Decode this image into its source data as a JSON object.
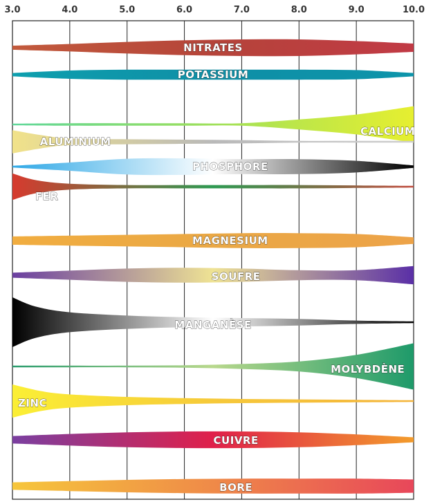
{
  "chart_data": {
    "type": "area",
    "title": "",
    "xlabel": "",
    "ylabel": "",
    "xlim": [
      3.0,
      10.0
    ],
    "x_ticks": [
      "3.0",
      "4.0",
      "5.0",
      "6.0",
      "7.0",
      "8.0",
      "9.0",
      "10.0"
    ],
    "grid": true,
    "series": [
      {
        "name": "NITRATES",
        "x": [
          3.0,
          4.0,
          5.0,
          6.0,
          7.0,
          8.0,
          9.0,
          10.0
        ],
        "values": [
          0.25,
          0.45,
          0.7,
          0.9,
          1.0,
          1.0,
          0.8,
          0.5
        ],
        "colors": [
          "#c25a3c",
          "#b5443a",
          "#c13a45"
        ]
      },
      {
        "name": "POTASSIUM",
        "x": [
          3.0,
          4.0,
          5.0,
          6.0,
          7.0,
          8.0,
          9.0,
          10.0
        ],
        "values": [
          0.2,
          0.5,
          0.6,
          0.6,
          0.6,
          0.6,
          0.55,
          0.2
        ],
        "colors": [
          "#0e9fae",
          "#0f8fa6",
          "#0d94aa"
        ]
      },
      {
        "name": "CALCIUM",
        "x": [
          3.0,
          4.0,
          5.0,
          6.0,
          7.0,
          8.0,
          9.0,
          10.0
        ],
        "values": [
          0.05,
          0.15,
          0.15,
          0.15,
          0.15,
          0.6,
          1.2,
          2.2
        ],
        "colors": [
          "#5fd79a",
          "#9fe05a",
          "#e6ef30"
        ]
      },
      {
        "name": "ALUMINIUM",
        "x": [
          3.0,
          3.5,
          4.0,
          5.0,
          6.0,
          7.0,
          8.0,
          9.0,
          10.0
        ],
        "values": [
          1.4,
          0.8,
          0.4,
          0.3,
          0.25,
          0.2,
          0.1,
          0.04,
          0.0
        ],
        "colors": [
          "#f1e28a",
          "#b9b9b9",
          "#cfcfcf"
        ]
      },
      {
        "name": "PHOSPHORE",
        "x": [
          3.0,
          4.0,
          5.0,
          6.0,
          7.0,
          8.0,
          9.0,
          10.0
        ],
        "values": [
          0.0,
          0.5,
          0.95,
          1.0,
          0.9,
          0.9,
          0.7,
          0.15
        ],
        "colors": [
          "#2fa8e6",
          "#ffffff",
          "#000000"
        ]
      },
      {
        "name": "FER",
        "x": [
          3.0,
          3.4,
          4.0,
          5.0,
          6.0,
          7.0,
          8.0,
          9.0,
          10.0
        ],
        "values": [
          1.6,
          0.8,
          0.35,
          0.2,
          0.2,
          0.2,
          0.2,
          0.15,
          0.05
        ],
        "colors": [
          "#d63a2e",
          "#2e9a52",
          "#c04a3c"
        ]
      },
      {
        "name": "MAGNESIUM",
        "x": [
          3.0,
          4.0,
          5.0,
          6.0,
          7.0,
          8.0,
          9.0,
          10.0
        ],
        "values": [
          0.5,
          0.6,
          0.7,
          0.8,
          0.9,
          0.9,
          0.8,
          0.4
        ],
        "colors": [
          "#f1ad40",
          "#eaa845",
          "#eda348"
        ]
      },
      {
        "name": "SOUFRE",
        "x": [
          3.0,
          4.0,
          5.0,
          6.0,
          7.0,
          8.0,
          9.0,
          10.0
        ],
        "values": [
          0.3,
          0.55,
          0.8,
          0.9,
          0.8,
          0.6,
          0.6,
          1.1
        ],
        "colors": [
          "#6a3fa0",
          "#efe394",
          "#5a2fa6"
        ]
      },
      {
        "name": "MANGANÈSE",
        "x": [
          3.0,
          3.4,
          4.0,
          5.0,
          6.0,
          7.0,
          8.0,
          9.0,
          10.0
        ],
        "values": [
          3.0,
          1.9,
          1.2,
          0.8,
          0.6,
          0.5,
          0.4,
          0.2,
          0.05
        ],
        "colors": [
          "#000000",
          "#ffffff",
          "#000000"
        ]
      },
      {
        "name": "MOLYBDÈNE",
        "x": [
          3.0,
          4.0,
          5.0,
          6.0,
          7.0,
          8.0,
          9.0,
          10.0
        ],
        "values": [
          0.02,
          0.05,
          0.1,
          0.15,
          0.3,
          0.6,
          1.4,
          2.8
        ],
        "colors": [
          "#2a9c6e",
          "#b8d88c",
          "#1e9a6a"
        ]
      },
      {
        "name": "ZINC",
        "x": [
          3.0,
          3.5,
          4.0,
          5.0,
          6.0,
          7.0,
          8.0,
          9.0,
          10.0
        ],
        "values": [
          2.0,
          1.2,
          0.8,
          0.5,
          0.35,
          0.25,
          0.2,
          0.15,
          0.1
        ],
        "colors": [
          "#fbef35",
          "#f6c93a",
          "#f4b43a"
        ]
      },
      {
        "name": "CUIVRE",
        "x": [
          3.0,
          4.0,
          5.0,
          6.0,
          7.0,
          8.0,
          9.0,
          10.0
        ],
        "values": [
          0.45,
          0.7,
          0.9,
          1.0,
          1.0,
          0.9,
          0.65,
          0.3
        ],
        "colors": [
          "#7a3fa0",
          "#e0204a",
          "#f39c2c"
        ]
      },
      {
        "name": "BORE",
        "x": [
          3.0,
          4.0,
          5.0,
          6.0,
          7.0,
          8.0,
          9.0,
          10.0
        ],
        "values": [
          0.45,
          0.6,
          0.75,
          0.85,
          0.9,
          0.9,
          0.9,
          0.8
        ],
        "colors": [
          "#f6c63c",
          "#ef8a48",
          "#e8475a"
        ]
      }
    ]
  }
}
